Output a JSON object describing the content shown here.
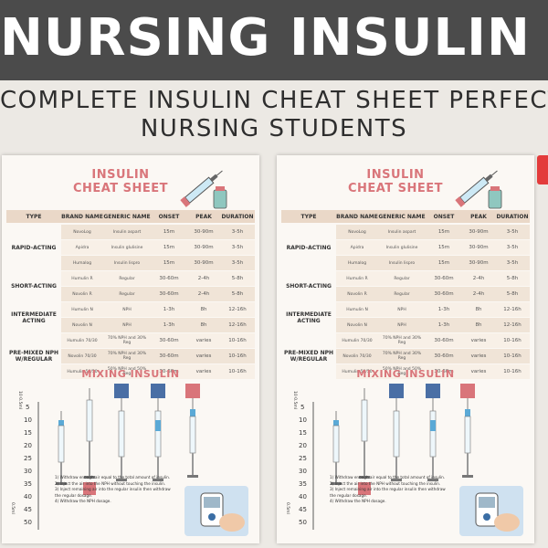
{
  "banner": {
    "title": "NURSING INSULIN CHEAT SHEET"
  },
  "subtitle": {
    "line1": "COMPLETE INSULIN CHEAT SHEET PERFECT FOR",
    "line2": "NURSING STUDENTS"
  },
  "sheet": {
    "title_line1": "INSULIN",
    "title_line2": "CHEAT SHEET",
    "headers": [
      "TYPE",
      "BRAND NAME",
      "GENERIC NAME",
      "ONSET",
      "PEAK",
      "DURATION"
    ],
    "groups": [
      {
        "type": "RAPID-ACTING",
        "rows": [
          {
            "brand": "NovoLog",
            "generic": "Insulin aspart",
            "onset": "15m",
            "peak": "30-90m",
            "duration": "3-5h"
          },
          {
            "brand": "Apidra",
            "generic": "Insulin glulisine",
            "onset": "15m",
            "peak": "30-90m",
            "duration": "3-5h"
          },
          {
            "brand": "Humalog",
            "generic": "Insulin lispro",
            "onset": "15m",
            "peak": "30-90m",
            "duration": "3-5h"
          }
        ]
      },
      {
        "type": "SHORT-ACTING",
        "rows": [
          {
            "brand": "Humulin R",
            "generic": "Regular",
            "onset": "30-60m",
            "peak": "2-4h",
            "duration": "5-8h"
          },
          {
            "brand": "Novolin R",
            "generic": "Regular",
            "onset": "30-60m",
            "peak": "2-4h",
            "duration": "5-8h"
          }
        ]
      },
      {
        "type": "INTERMEDIATE ACTING",
        "rows": [
          {
            "brand": "Humulin N",
            "generic": "NPH",
            "onset": "1-3h",
            "peak": "8h",
            "duration": "12-16h"
          },
          {
            "brand": "Novolin N",
            "generic": "NPH",
            "onset": "1-3h",
            "peak": "8h",
            "duration": "12-16h"
          }
        ]
      },
      {
        "type": "PRE-MIXED NPH W/REGULAR",
        "rows": [
          {
            "brand": "Humulin 70/30",
            "generic": "70% NPH and 30% Reg",
            "onset": "30-60m",
            "peak": "varies",
            "duration": "10-16h"
          },
          {
            "brand": "Novolin 70/30",
            "generic": "70% NPH and 30% Reg",
            "onset": "30-60m",
            "peak": "varies",
            "duration": "10-16h"
          },
          {
            "brand": "Humulin 50/50",
            "generic": "50% NPH and 50% Reg",
            "onset": "30-60m",
            "peak": "varies",
            "duration": "10-16h"
          }
        ]
      }
    ],
    "mixing_title": "MIXING INSULIN",
    "ruler_top": "10 0.5ml",
    "ruler_bottom": "0.5ml",
    "ruler_ticks": [
      "5",
      "10",
      "15",
      "20",
      "25",
      "30",
      "35",
      "40",
      "45",
      "50"
    ],
    "steps": [
      "1) Withdraw enough air equal to the total amount of insulin.",
      "2) Inject the air into the NPH without touching the insulin.",
      "3) Inject remaining air into the regular insulin then withdraw",
      "   the regular dosage.",
      "4) Withdraw the NPH dosage."
    ]
  },
  "colors": {
    "banner": "#4b4b4b",
    "accent": "#d9757a",
    "row_dark": "#f0e4d7",
    "row_light": "#f8f0e7",
    "header": "#ead8c8",
    "badge": "#e33b3b"
  }
}
